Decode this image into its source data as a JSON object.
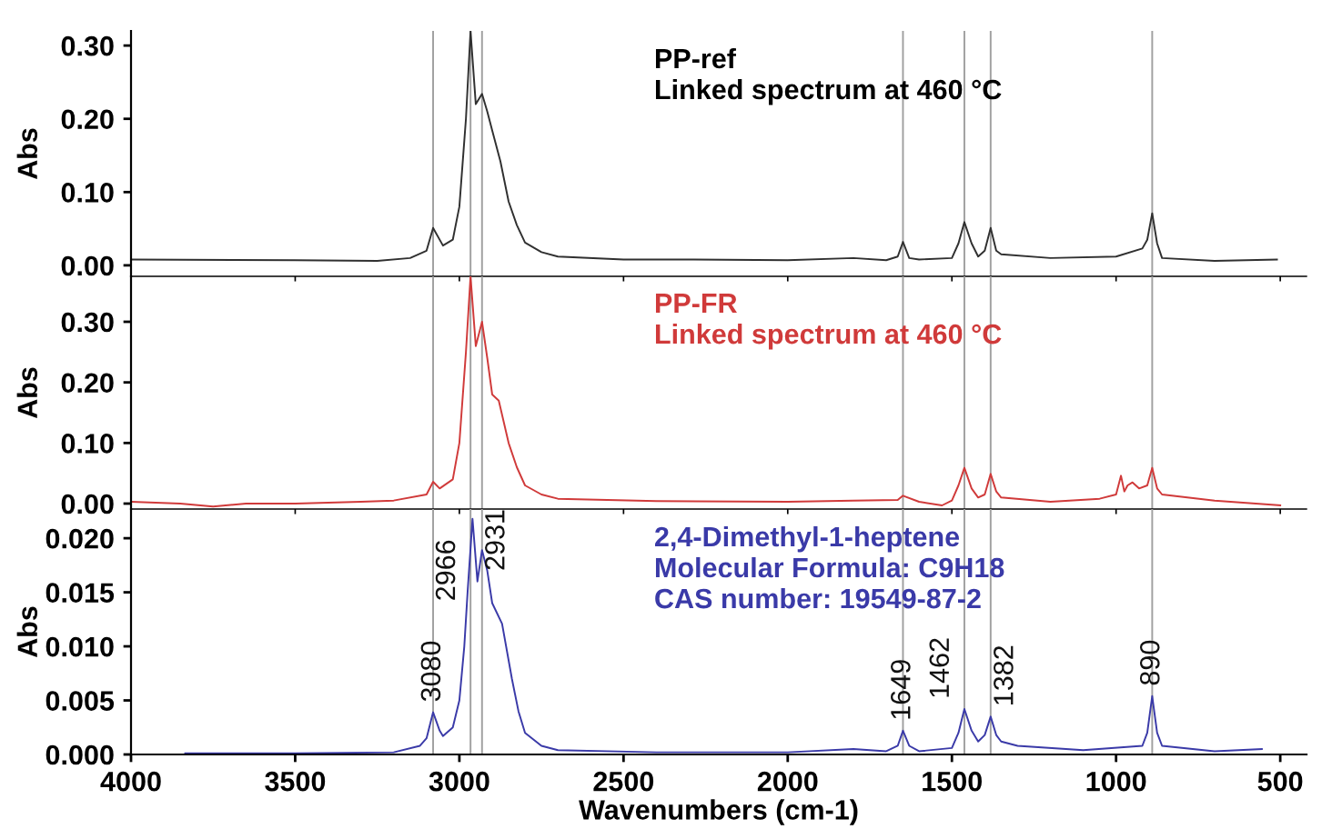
{
  "chart_data": [
    {
      "type": "line",
      "ylabel": "Abs",
      "annotations": [
        "PP-ref\nLinked spectrum at 460 °C"
      ],
      "xlim": [
        4000,
        420
      ],
      "ylim": [
        -0.015,
        0.32
      ],
      "yticks": [
        {
          "value": 0,
          "label": "0.00"
        },
        {
          "value": 0.1,
          "label": "0.10"
        },
        {
          "value": 0.2,
          "label": "0.20"
        },
        {
          "value": 0.3,
          "label": "0.30"
        }
      ],
      "tick_labels": "y",
      "grid": false,
      "legend": false,
      "ref_lines": [
        {
          "axis": "x",
          "value": 3080,
          "color": "#a0a0a0"
        },
        {
          "axis": "x",
          "value": 2966,
          "color": "#a0a0a0"
        },
        {
          "axis": "x",
          "value": 2931,
          "color": "#a0a0a0"
        },
        {
          "axis": "x",
          "value": 1649,
          "color": "#a0a0a0"
        },
        {
          "axis": "x",
          "value": 1462,
          "color": "#a0a0a0"
        },
        {
          "axis": "x",
          "value": 1382,
          "color": "#a0a0a0"
        },
        {
          "axis": "x",
          "value": 890,
          "color": "#a0a0a0"
        }
      ],
      "series": [
        {
          "color": "#303030",
          "x": [
            4000,
            3500,
            3250,
            3150,
            3100,
            3080,
            3050,
            3020,
            3000,
            2980,
            2966,
            2950,
            2931,
            2915,
            2900,
            2875,
            2850,
            2825,
            2800,
            2750,
            2700,
            2500,
            2300,
            2000,
            1800,
            1700,
            1665,
            1649,
            1630,
            1600,
            1500,
            1480,
            1462,
            1440,
            1420,
            1400,
            1382,
            1365,
            1350,
            1200,
            1000,
            920,
            905,
            890,
            875,
            860,
            700,
            510
          ],
          "values": [
            0.008,
            0.007,
            0.006,
            0.01,
            0.02,
            0.051,
            0.027,
            0.035,
            0.08,
            0.2,
            0.32,
            0.22,
            0.234,
            0.21,
            0.184,
            0.142,
            0.087,
            0.055,
            0.031,
            0.018,
            0.012,
            0.008,
            0.008,
            0.007,
            0.01,
            0.007,
            0.012,
            0.032,
            0.01,
            0.008,
            0.01,
            0.03,
            0.059,
            0.03,
            0.012,
            0.02,
            0.051,
            0.02,
            0.015,
            0.01,
            0.012,
            0.023,
            0.035,
            0.071,
            0.03,
            0.01,
            0.006,
            0.008
          ]
        }
      ]
    },
    {
      "type": "line",
      "ylabel": "Abs",
      "annotations": [
        "PP-FR\nLinked spectrum at 460 °C"
      ],
      "xlim": [
        4000,
        420
      ],
      "ylim": [
        -0.009,
        0.375
      ],
      "yticks": [
        {
          "value": 0,
          "label": "0.00"
        },
        {
          "value": 0.1,
          "label": "0.10"
        },
        {
          "value": 0.2,
          "label": "0.20"
        },
        {
          "value": 0.3,
          "label": "0.30"
        }
      ],
      "tick_labels": "y",
      "grid": false,
      "legend": false,
      "ref_lines": [
        {
          "axis": "x",
          "value": 3080,
          "color": "#a0a0a0"
        },
        {
          "axis": "x",
          "value": 2966,
          "color": "#a0a0a0"
        },
        {
          "axis": "x",
          "value": 2931,
          "color": "#a0a0a0"
        },
        {
          "axis": "x",
          "value": 1649,
          "color": "#a0a0a0"
        },
        {
          "axis": "x",
          "value": 1462,
          "color": "#a0a0a0"
        },
        {
          "axis": "x",
          "value": 1382,
          "color": "#a0a0a0"
        },
        {
          "axis": "x",
          "value": 890,
          "color": "#a0a0a0"
        }
      ],
      "series": [
        {
          "color": "#d03a3a",
          "x": [
            4000,
            3850,
            3750,
            3650,
            3500,
            3300,
            3200,
            3100,
            3080,
            3060,
            3020,
            3000,
            2980,
            2966,
            2950,
            2931,
            2915,
            2900,
            2880,
            2850,
            2825,
            2800,
            2750,
            2700,
            2400,
            2000,
            1800,
            1665,
            1649,
            1600,
            1530,
            1500,
            1480,
            1462,
            1440,
            1420,
            1400,
            1382,
            1365,
            1350,
            1200,
            1050,
            1000,
            985,
            975,
            965,
            950,
            930,
            905,
            890,
            875,
            860,
            700,
            500
          ],
          "values": [
            0.003,
            0.0,
            -0.005,
            0.0,
            0.0,
            0.003,
            0.005,
            0.015,
            0.036,
            0.025,
            0.04,
            0.1,
            0.25,
            0.375,
            0.26,
            0.3,
            0.24,
            0.18,
            0.17,
            0.1,
            0.06,
            0.03,
            0.015,
            0.008,
            0.004,
            0.003,
            0.005,
            0.006,
            0.013,
            0.003,
            -0.003,
            0.005,
            0.03,
            0.059,
            0.025,
            0.01,
            0.015,
            0.049,
            0.02,
            0.01,
            0.003,
            0.008,
            0.015,
            0.046,
            0.02,
            0.03,
            0.035,
            0.025,
            0.03,
            0.059,
            0.025,
            0.015,
            0.005,
            -0.003
          ]
        }
      ]
    },
    {
      "type": "line",
      "ylabel": "Abs",
      "xlabel": "Wavenumbers (cm-1)",
      "annotations": [
        "2,4-Dimethyl-1-heptene\nMolecular Formula: C9H18\nCAS number: 19549-87-2",
        {
          "text": "3080",
          "x": 3080,
          "y": 0.0039
        },
        {
          "text": "2966",
          "x": 2966,
          "y": 0.0218
        },
        {
          "text": "2931",
          "x": 2931,
          "y": 0.0189
        },
        {
          "text": "1649",
          "x": 1649,
          "y": 0.0022
        },
        {
          "text": "1462",
          "x": 1462,
          "y": 0.0042
        },
        {
          "text": "1382",
          "x": 1382,
          "y": 0.0035
        },
        {
          "text": "890",
          "x": 890,
          "y": 0.0054
        }
      ],
      "xlim": [
        4000,
        420
      ],
      "ylim": [
        0,
        0.0227
      ],
      "xticks": [
        4000,
        3500,
        3000,
        2500,
        2000,
        1500,
        1000,
        500
      ],
      "yticks": [
        {
          "value": 0,
          "label": "0.000"
        },
        {
          "value": 0.005,
          "label": "0.005"
        },
        {
          "value": 0.01,
          "label": "0.010"
        },
        {
          "value": 0.015,
          "label": "0.015"
        },
        {
          "value": 0.02,
          "label": "0.020"
        }
      ],
      "grid": false,
      "legend": false,
      "ref_lines": [
        {
          "axis": "x",
          "value": 3080,
          "color": "#a0a0a0"
        },
        {
          "axis": "x",
          "value": 2966,
          "color": "#a0a0a0"
        },
        {
          "axis": "x",
          "value": 2931,
          "color": "#a0a0a0"
        },
        {
          "axis": "x",
          "value": 1649,
          "color": "#a0a0a0"
        },
        {
          "axis": "x",
          "value": 1462,
          "color": "#a0a0a0"
        },
        {
          "axis": "x",
          "value": 1382,
          "color": "#a0a0a0"
        },
        {
          "axis": "x",
          "value": 890,
          "color": "#a0a0a0"
        }
      ],
      "series": [
        {
          "color": "#3a3aa8",
          "x": [
            3835,
            3500,
            3200,
            3120,
            3100,
            3080,
            3060,
            3050,
            3020,
            3000,
            2985,
            2975,
            2960,
            2945,
            2931,
            2915,
            2900,
            2870,
            2840,
            2820,
            2800,
            2750,
            2700,
            2400,
            2000,
            1800,
            1700,
            1665,
            1649,
            1630,
            1600,
            1500,
            1480,
            1462,
            1440,
            1420,
            1400,
            1382,
            1365,
            1350,
            1300,
            1100,
            920,
            905,
            890,
            875,
            860,
            700,
            556
          ],
          "values": [
            0.0001,
            0.0001,
            0.0002,
            0.0008,
            0.0015,
            0.0039,
            0.0022,
            0.0017,
            0.0025,
            0.005,
            0.01,
            0.015,
            0.0218,
            0.016,
            0.0189,
            0.017,
            0.014,
            0.0121,
            0.007,
            0.004,
            0.002,
            0.0008,
            0.0004,
            0.0002,
            0.0002,
            0.0005,
            0.0003,
            0.0008,
            0.0022,
            0.0008,
            0.0003,
            0.0006,
            0.002,
            0.0042,
            0.0022,
            0.0012,
            0.0018,
            0.0035,
            0.0018,
            0.0012,
            0.0008,
            0.0004,
            0.0008,
            0.002,
            0.0054,
            0.002,
            0.0008,
            0.0003,
            0.0005
          ]
        }
      ]
    }
  ]
}
